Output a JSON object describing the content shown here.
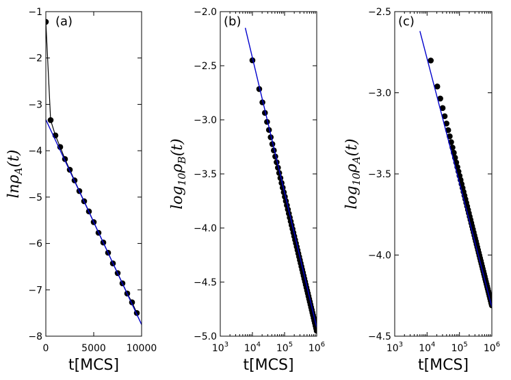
{
  "chart_data": [
    {
      "id": "a",
      "type": "scatter",
      "panel_label": "(a)",
      "xlabel": "t[MCS]",
      "ylabel": {
        "pre": "ln",
        "sym": "ρ",
        "sub": "A",
        "post": "(t)"
      },
      "xscale": "linear",
      "xlim": [
        0,
        10000
      ],
      "ylim": [
        -8,
        -1
      ],
      "xticks": [
        0,
        5000,
        10000
      ],
      "xticklabels": [
        "0",
        "5000",
        "10000"
      ],
      "yticks": [
        -8,
        -7,
        -6,
        -5,
        -4,
        -3,
        -2,
        -1
      ],
      "yticklabels": [
        "−8",
        "−7",
        "−6",
        "−5",
        "−4",
        "−3",
        "−2",
        "−1"
      ],
      "series": [
        {
          "name": "data",
          "color": "#000000",
          "marker": "circle",
          "connect": true,
          "x": [
            0,
            500,
            1000,
            1500,
            2000,
            2500,
            3000,
            3500,
            4000,
            4500,
            5000,
            5500,
            6000,
            6500,
            7000,
            7500,
            8000,
            8500,
            9000,
            9500
          ],
          "y": [
            -1.22,
            -3.34,
            -3.67,
            -3.92,
            -4.18,
            -4.41,
            -4.64,
            -4.87,
            -5.09,
            -5.31,
            -5.54,
            -5.77,
            -5.98,
            -6.2,
            -6.43,
            -6.64,
            -6.86,
            -7.08,
            -7.27,
            -7.5
          ]
        },
        {
          "name": "fit",
          "color": "#0000cc",
          "type": "line",
          "x": [
            0,
            10000
          ],
          "y": [
            -3.33,
            -7.75
          ]
        }
      ]
    },
    {
      "id": "b",
      "type": "scatter",
      "panel_label": "(b)",
      "xlabel": "t[MCS]",
      "ylabel": {
        "pre": "log",
        "presub": "10",
        "sym": "ρ",
        "sub": "B",
        "post": "(t)"
      },
      "xscale": "log",
      "xlim": [
        1000,
        1000000
      ],
      "ylim": [
        -5,
        -2
      ],
      "xticks": [
        1000,
        10000,
        100000,
        1000000
      ],
      "xticklabels": [
        {
          "base": "10",
          "exp": "3"
        },
        {
          "base": "10",
          "exp": "4"
        },
        {
          "base": "10",
          "exp": "5"
        },
        {
          "base": "10",
          "exp": "6"
        }
      ],
      "yticks": [
        -5,
        -4.5,
        -4,
        -3.5,
        -3,
        -2.5,
        -2
      ],
      "yticklabels": [
        "−5.0",
        "−4.5",
        "−4.0",
        "−3.5",
        "−3.0",
        "−2.5",
        "−2.0"
      ],
      "series": [
        {
          "name": "data",
          "color": "#000000",
          "marker": "circle",
          "connect": false,
          "x_range": [
            10000,
            1000000
          ],
          "count": 60,
          "fit": {
            "slope": -1.25,
            "intercept": 2.55
          }
        },
        {
          "name": "fit",
          "color": "#0000cc",
          "type": "line",
          "x": [
            6000,
            1000000
          ],
          "y": [
            -2.15,
            -4.92
          ]
        }
      ]
    },
    {
      "id": "c",
      "type": "scatter",
      "panel_label": "(c)",
      "xlabel": "t[MCS]",
      "ylabel": {
        "pre": "log",
        "presub": "10",
        "sym": "ρ",
        "sub": "A",
        "post": "(t)"
      },
      "xscale": "log",
      "xlim": [
        1000,
        1000000
      ],
      "ylim": [
        -4.5,
        -2.5
      ],
      "xticks": [
        1000,
        10000,
        100000,
        1000000
      ],
      "xticklabels": [
        {
          "base": "10",
          "exp": "3"
        },
        {
          "base": "10",
          "exp": "4"
        },
        {
          "base": "10",
          "exp": "5"
        },
        {
          "base": "10",
          "exp": "6"
        }
      ],
      "yticks": [
        -4.5,
        -4,
        -3.5,
        -3,
        -2.5
      ],
      "yticklabels": [
        "−4.5",
        "−4.0",
        "−3.5",
        "−3.0",
        "−2.5"
      ],
      "series": [
        {
          "name": "data",
          "color": "#000000",
          "marker": "circle",
          "connect": false,
          "x_range": [
            13000,
            1000000
          ],
          "count": 60,
          "fit": {
            "slope": -0.8,
            "intercept": 0.49
          }
        },
        {
          "name": "fit",
          "color": "#0000cc",
          "type": "line",
          "x": [
            6000,
            1000000
          ],
          "y": [
            -2.62,
            -4.32
          ]
        }
      ]
    }
  ]
}
